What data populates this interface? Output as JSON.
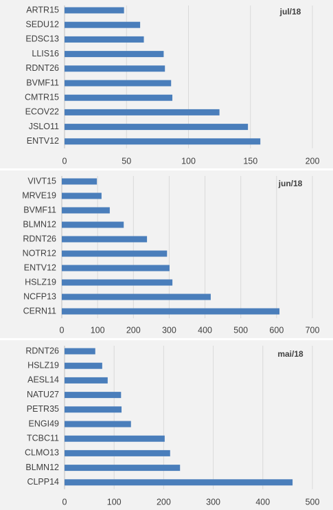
{
  "chart_data": [
    {
      "type": "bar",
      "orientation": "horizontal",
      "title": "jul/18",
      "categories": [
        "ARTR15",
        "SEDU12",
        "EDSC13",
        "LLIS16",
        "RDNT26",
        "BVMF11",
        "CMTR15",
        "ECOV22",
        "JSLO11",
        "ENTV12"
      ],
      "values": [
        48,
        61,
        64,
        80,
        81,
        86,
        87,
        125,
        148,
        158
      ],
      "color": "#4a7ebb",
      "xlim": [
        0,
        200
      ],
      "xticks": [
        0,
        50,
        100,
        150,
        200
      ],
      "grid": true
    },
    {
      "type": "bar",
      "orientation": "horizontal",
      "title": "jun/18",
      "categories": [
        "VIVT15",
        "MRVE19",
        "BVMF11",
        "BLMN12",
        "RDNT26",
        "NOTR12",
        "ENTV12",
        "HSLZ19",
        "NCFP13",
        "CERN11"
      ],
      "values": [
        98,
        111,
        134,
        173,
        238,
        294,
        301,
        309,
        416,
        608
      ],
      "color": "#4a7ebb",
      "xlim": [
        0,
        700
      ],
      "xticks": [
        0,
        100,
        200,
        300,
        400,
        500,
        600,
        700
      ],
      "grid": true
    },
    {
      "type": "bar",
      "orientation": "horizontal",
      "title": "mai/18",
      "categories": [
        "RDNT26",
        "HSLZ19",
        "AESL14",
        "NATU27",
        "PETR35",
        "ENGI49",
        "TCBC11",
        "CLMO13",
        "BLMN12",
        "CLPP14"
      ],
      "values": [
        62,
        76,
        87,
        114,
        115,
        134,
        202,
        213,
        233,
        460
      ],
      "color": "#4a7ebb",
      "xlim": [
        0,
        500
      ],
      "xticks": [
        0,
        100,
        200,
        300,
        400,
        500
      ],
      "grid": true
    }
  ]
}
